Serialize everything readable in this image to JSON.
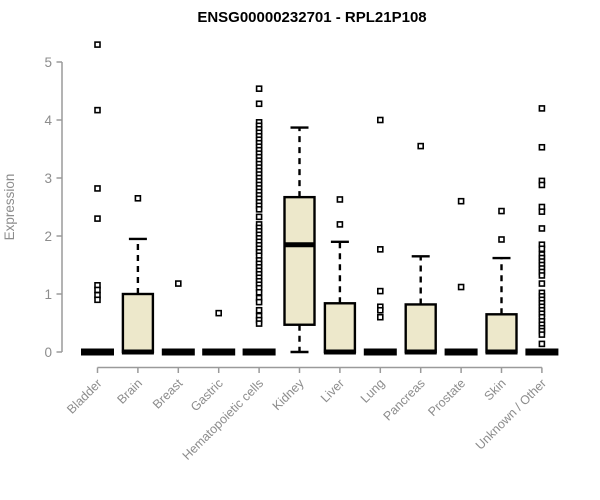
{
  "chart_data": {
    "type": "boxplot",
    "title": "ENSG00000232701 - RPL21P108",
    "ylabel": "Expression",
    "xlabel": "",
    "ylim": [
      0,
      5
    ],
    "yticks": [
      0,
      1,
      2,
      3,
      4,
      5
    ],
    "grid": false,
    "legend": "none",
    "colors": {
      "box_fill": "#EDE8CB",
      "box_stroke": "#000000",
      "median": "#000000",
      "axis": "#9A9A9A",
      "tick_text": "#8C8C8C",
      "title_text": "#000000",
      "outlier_fill": "#FFFFFF",
      "background": "#FFFFFF"
    },
    "categories": [
      "Bladder",
      "Brain",
      "Breast",
      "Gastric",
      "Hematopoietic cells",
      "Kidney",
      "Liver",
      "Lung",
      "Pancreas",
      "Prostate",
      "Skin",
      "Unknown / Other"
    ],
    "series": [
      {
        "category": "Bladder",
        "min": 0,
        "q1": 0,
        "median": 0,
        "q3": 0,
        "max": 0,
        "outliers": [
          5.3,
          4.17,
          2.82,
          2.3,
          1.15,
          1.07,
          0.98,
          0.9
        ]
      },
      {
        "category": "Brain",
        "min": 0,
        "q1": 0,
        "median": 0,
        "q3": 1.0,
        "max": 1.95,
        "outliers": [
          2.65
        ]
      },
      {
        "category": "Breast",
        "min": 0,
        "q1": 0,
        "median": 0,
        "q3": 0,
        "max": 0,
        "outliers": [
          1.18
        ]
      },
      {
        "category": "Gastric",
        "min": 0,
        "q1": 0,
        "median": 0,
        "q3": 0,
        "max": 0,
        "outliers": [
          0.67
        ]
      },
      {
        "category": "Hematopoietic cells",
        "min": 0,
        "q1": 0,
        "median": 0,
        "q3": 0,
        "max": 0,
        "outliers": [
          4.54,
          4.28,
          3.96,
          3.9,
          3.84,
          3.78,
          3.72,
          3.66,
          3.6,
          3.54,
          3.48,
          3.42,
          3.36,
          3.3,
          3.24,
          3.18,
          3.12,
          3.06,
          3.0,
          2.94,
          2.88,
          2.82,
          2.76,
          2.7,
          2.64,
          2.58,
          2.52,
          2.46,
          2.33,
          2.2,
          2.14,
          2.08,
          2.02,
          1.96,
          1.9,
          1.84,
          1.78,
          1.72,
          1.66,
          1.58,
          1.52,
          1.46,
          1.4,
          1.34,
          1.28,
          1.22,
          1.16,
          1.1,
          1.03,
          0.93,
          0.86,
          0.72,
          0.62,
          0.55,
          0.49
        ]
      },
      {
        "category": "Kidney",
        "min": 0,
        "q1": 0.47,
        "median": 1.85,
        "q3": 2.67,
        "max": 3.87,
        "outliers": []
      },
      {
        "category": "Liver",
        "min": 0,
        "q1": 0,
        "median": 0,
        "q3": 0.84,
        "max": 1.9,
        "outliers": [
          2.63,
          2.2
        ]
      },
      {
        "category": "Lung",
        "min": 0,
        "q1": 0,
        "median": 0,
        "q3": 0,
        "max": 0,
        "outliers": [
          4.0,
          1.77,
          1.05,
          0.78,
          0.72,
          0.6
        ]
      },
      {
        "category": "Pancreas",
        "min": 0,
        "q1": 0,
        "median": 0,
        "q3": 0.82,
        "max": 1.65,
        "outliers": [
          3.55
        ]
      },
      {
        "category": "Prostate",
        "min": 0,
        "q1": 0,
        "median": 0,
        "q3": 0,
        "max": 0,
        "outliers": [
          2.6,
          1.12
        ]
      },
      {
        "category": "Skin",
        "min": 0,
        "q1": 0,
        "median": 0,
        "q3": 0.65,
        "max": 1.62,
        "outliers": [
          2.43,
          1.94
        ]
      },
      {
        "category": "Unknown / Other",
        "min": 0,
        "q1": 0,
        "median": 0,
        "q3": 0,
        "max": 0,
        "outliers": [
          4.2,
          3.53,
          2.95,
          2.88,
          2.5,
          2.42,
          2.13,
          1.85,
          1.78,
          1.68,
          1.62,
          1.56,
          1.5,
          1.44,
          1.38,
          1.32,
          1.18,
          1.02,
          0.96,
          0.9,
          0.84,
          0.78,
          0.72,
          0.66,
          0.6,
          0.53,
          0.47,
          0.41,
          0.36,
          0.3,
          0.14
        ]
      }
    ]
  }
}
